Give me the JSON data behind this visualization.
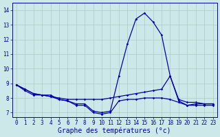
{
  "title": "",
  "xlabel": "Graphe des températures (°c)",
  "ylabel": "",
  "bg_color": "#cce8e8",
  "grid_color": "#b0c8c8",
  "line_color": "#0000aa",
  "xtick_labels": [
    "0",
    "1",
    "2",
    "3",
    "4",
    "5",
    "6",
    "7",
    "8",
    "9",
    "10",
    "11",
    "12",
    "13",
    "14",
    "15",
    "16",
    "17",
    "18",
    "19",
    "20",
    "21",
    "22",
    "23"
  ],
  "ytick_labels": [
    "7",
    "8",
    "9",
    "10",
    "11",
    "12",
    "13",
    "14"
  ],
  "ylim": [
    6.7,
    14.5
  ],
  "xlim": [
    -0.5,
    23.5
  ],
  "line1": [
    8.9,
    8.6,
    8.3,
    8.2,
    8.2,
    7.9,
    7.8,
    7.6,
    7.6,
    7.1,
    7.0,
    7.1,
    9.5,
    11.7,
    13.4,
    13.8,
    13.2,
    12.3,
    9.5,
    7.8,
    7.5,
    7.6,
    7.6,
    7.6
  ],
  "line2": [
    8.9,
    8.6,
    8.3,
    8.2,
    8.1,
    8.0,
    7.9,
    7.9,
    7.9,
    7.9,
    7.9,
    8.0,
    8.1,
    8.2,
    8.3,
    8.4,
    8.5,
    8.6,
    9.5,
    7.9,
    7.7,
    7.7,
    7.6,
    7.6
  ],
  "line3": [
    8.9,
    8.5,
    8.2,
    8.2,
    8.1,
    7.9,
    7.8,
    7.5,
    7.5,
    7.0,
    6.9,
    7.0,
    7.8,
    7.9,
    7.9,
    8.0,
    8.0,
    8.0,
    7.9,
    7.7,
    7.5,
    7.5,
    7.5,
    7.5
  ],
  "font_color": "#0000aa",
  "tick_fontsize": 5.5,
  "label_fontsize": 7.0
}
